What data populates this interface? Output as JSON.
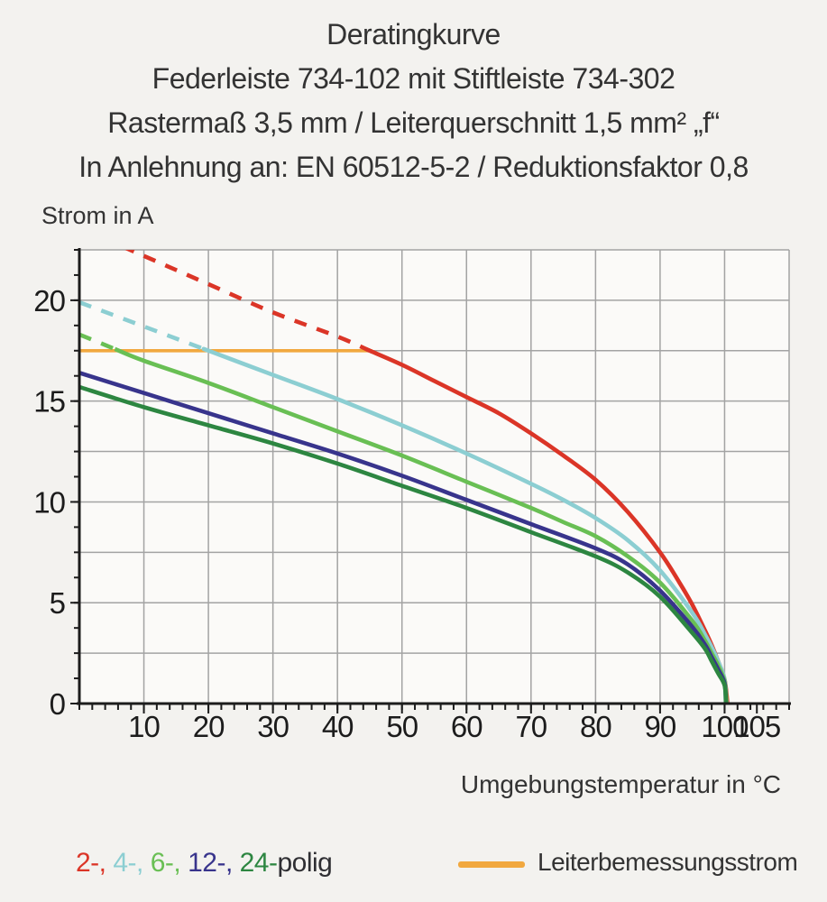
{
  "chart_data": {
    "type": "line",
    "title_lines": [
      "Deratingkurve",
      "Federleiste 734-102 mit Stiftleiste 734-302",
      "Rastermaß 3,5 mm / Leiterquerschnitt 1,5 mm² „f“",
      "In Anlehnung an: EN 60512-5-2 / Reduktionsfaktor 0,8"
    ],
    "xlabel": "Umgebungstemperatur in °C",
    "ylabel": "Strom in A",
    "xlim": [
      0,
      110
    ],
    "ylim": [
      0,
      22.5
    ],
    "grid": true,
    "x_tick_labels": [
      10,
      20,
      30,
      40,
      50,
      60,
      70,
      80,
      90,
      100,
      105
    ],
    "y_tick_labels": [
      0,
      5,
      10,
      15,
      20
    ],
    "x_grid_step": 10,
    "y_grid_step": 2.5,
    "x_minor_tick_step": 2,
    "y_minor_tick_step": 1.25,
    "colors": {
      "grid": "#a3a3a3",
      "axis": "#1c1c1c"
    },
    "rated_current_line": {
      "label": "Leiterbemessungsstrom",
      "color": "#f1a83f",
      "y": 17.5,
      "x_from": 0,
      "x_to": 45.4
    },
    "series": [
      {
        "name": "2-polig",
        "legend_label": "2-",
        "color": "#db3527",
        "dashed_above_rated_until_x": 45,
        "points": [
          [
            0,
            23.6
          ],
          [
            10,
            22.2
          ],
          [
            20,
            20.8
          ],
          [
            30,
            19.4
          ],
          [
            40,
            18.2
          ],
          [
            45,
            17.5
          ],
          [
            50,
            16.8
          ],
          [
            55,
            16.0
          ],
          [
            60,
            15.2
          ],
          [
            65,
            14.4
          ],
          [
            70,
            13.4
          ],
          [
            75,
            12.3
          ],
          [
            80,
            11.1
          ],
          [
            85,
            9.5
          ],
          [
            90,
            7.5
          ],
          [
            93,
            6.0
          ],
          [
            95,
            4.9
          ],
          [
            97,
            3.6
          ],
          [
            98,
            2.9
          ],
          [
            99,
            2.1
          ],
          [
            100,
            1.2
          ],
          [
            100.45,
            0
          ]
        ]
      },
      {
        "name": "4-polig",
        "legend_label": "4-",
        "color": "#8cced2",
        "dashed_above_rated_until_x": 20,
        "points": [
          [
            0,
            19.9
          ],
          [
            10,
            18.7
          ],
          [
            20,
            17.5
          ],
          [
            30,
            16.3
          ],
          [
            40,
            15.1
          ],
          [
            50,
            13.8
          ],
          [
            60,
            12.4
          ],
          [
            70,
            10.9
          ],
          [
            75,
            10.1
          ],
          [
            80,
            9.2
          ],
          [
            85,
            8.1
          ],
          [
            90,
            6.6
          ],
          [
            95,
            4.5
          ],
          [
            97,
            3.4
          ],
          [
            98,
            2.8
          ],
          [
            99,
            2.1
          ],
          [
            100,
            1.2
          ],
          [
            100.3,
            0
          ]
        ]
      },
      {
        "name": "6-polig",
        "legend_label": "6-",
        "color": "#69bf54",
        "dashed_above_rated_until_x": 5.5,
        "points": [
          [
            0,
            18.3
          ],
          [
            10,
            17.0
          ],
          [
            20,
            15.9
          ],
          [
            30,
            14.7
          ],
          [
            40,
            13.5
          ],
          [
            50,
            12.3
          ],
          [
            60,
            11.0
          ],
          [
            70,
            9.7
          ],
          [
            75,
            9.0
          ],
          [
            80,
            8.3
          ],
          [
            85,
            7.3
          ],
          [
            90,
            6.0
          ],
          [
            95,
            4.1
          ],
          [
            97,
            3.1
          ],
          [
            98,
            2.5
          ],
          [
            99,
            1.9
          ],
          [
            100,
            1.1
          ],
          [
            100.3,
            0
          ]
        ]
      },
      {
        "name": "12-polig",
        "legend_label": "12-",
        "color": "#38348c",
        "dashed_above_rated_until_x": 0,
        "points": [
          [
            0,
            16.4
          ],
          [
            10,
            15.4
          ],
          [
            20,
            14.4
          ],
          [
            30,
            13.4
          ],
          [
            40,
            12.4
          ],
          [
            50,
            11.3
          ],
          [
            60,
            10.1
          ],
          [
            70,
            8.9
          ],
          [
            80,
            7.7
          ],
          [
            85,
            6.9
          ],
          [
            90,
            5.6
          ],
          [
            95,
            3.8
          ],
          [
            97,
            2.9
          ],
          [
            98,
            2.3
          ],
          [
            99,
            1.7
          ],
          [
            100,
            1.0
          ],
          [
            100.2,
            0
          ]
        ]
      },
      {
        "name": "24-polig",
        "legend_label": "24-",
        "color": "#2d8641",
        "dashed_above_rated_until_x": 0,
        "points": [
          [
            0,
            15.7
          ],
          [
            10,
            14.7
          ],
          [
            20,
            13.8
          ],
          [
            30,
            12.9
          ],
          [
            40,
            11.9
          ],
          [
            50,
            10.8
          ],
          [
            60,
            9.7
          ],
          [
            70,
            8.5
          ],
          [
            80,
            7.3
          ],
          [
            85,
            6.5
          ],
          [
            90,
            5.3
          ],
          [
            95,
            3.5
          ],
          [
            97,
            2.7
          ],
          [
            98,
            2.1
          ],
          [
            99,
            1.5
          ],
          [
            100,
            0.9
          ],
          [
            100.2,
            0
          ]
        ]
      }
    ],
    "legend": {
      "separator": ", ",
      "suffix": "polig",
      "suffix_color": "#2f2f33"
    }
  }
}
